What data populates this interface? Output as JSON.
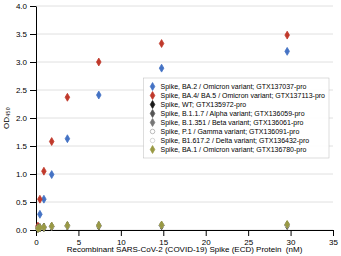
{
  "chart_data": {
    "type": "scatter",
    "xlabel": "Recombinant SARS-CoV-2 (COVID-19) Spike (ECD) Protein  (nM)",
    "ylabel": "OD₄₅₀",
    "x": [
      0.23,
      0.46,
      0.93,
      1.85,
      3.7,
      7.4,
      14.8,
      29.6
    ],
    "series": [
      {
        "name": "Spike, BA.2 / Omicron variant; GTX137037-pro",
        "color": "#4472c4",
        "marker": "diamond",
        "values": [
          0.05,
          0.28,
          0.55,
          0.99,
          1.63,
          2.41,
          2.89,
          3.19
        ]
      },
      {
        "name": "Spike, BA.4/ BA.5 / Omicron variant; GTX137113-pro",
        "color": "#c0392b",
        "marker": "diamond",
        "values": [
          0.07,
          0.55,
          1.05,
          1.58,
          2.37,
          3.0,
          3.33,
          3.48
        ]
      },
      {
        "name": "Spike, WT; GTX135972-pro",
        "color": "#1a1a1a",
        "marker": "diamond",
        "values": [
          0.03,
          0.04,
          0.05,
          0.06,
          0.07,
          0.07,
          0.08,
          0.08
        ]
      },
      {
        "name": "Spike, B.1.1.7 / Alpha variant; GTX136059-pro",
        "color": "#555555",
        "marker": "diamond",
        "values": [
          0.03,
          0.04,
          0.05,
          0.06,
          0.08,
          0.08,
          0.08,
          0.09
        ]
      },
      {
        "name": "Spike, B.1.351 / Beta variant; GTX136061-pro",
        "color": "#777777",
        "marker": "diamond",
        "values": [
          0.03,
          0.04,
          0.04,
          0.06,
          0.07,
          0.08,
          0.08,
          0.09
        ]
      },
      {
        "name": "Spike, P.1 / Gamma variant; GTX136091-pro",
        "color": "#aaaaaa",
        "marker": "circle",
        "values": [
          0.03,
          0.04,
          0.05,
          0.06,
          0.07,
          0.08,
          0.09,
          0.09
        ]
      },
      {
        "name": "Spike, B1.617.2 / Delta variant; GTX136432-pro",
        "color": "#cccccc",
        "marker": "circle",
        "values": [
          0.03,
          0.04,
          0.05,
          0.06,
          0.07,
          0.08,
          0.09,
          0.09
        ]
      },
      {
        "name": "Spike, BA.1 / Omicron variant; GTX136780-pro",
        "color": "#999944",
        "marker": "diamond",
        "values": [
          0.03,
          0.04,
          0.05,
          0.07,
          0.08,
          0.08,
          0.09,
          0.1
        ]
      }
    ],
    "xlim": [
      0,
      35
    ],
    "xticks": [
      0,
      5,
      10,
      15,
      20,
      25,
      30,
      35
    ],
    "ylim": [
      0,
      4
    ],
    "yticks": [
      {
        "value": 0,
        "label": "0.0"
      },
      0.5,
      {
        "value": 1,
        "label": "1.0"
      },
      1.5,
      {
        "value": 2,
        "label": "2.0"
      },
      2.5,
      {
        "value": 3,
        "label": "3.0"
      },
      3.5,
      {
        "value": 4,
        "label": "4.0"
      }
    ],
    "grid": true,
    "legend": "center right"
  }
}
